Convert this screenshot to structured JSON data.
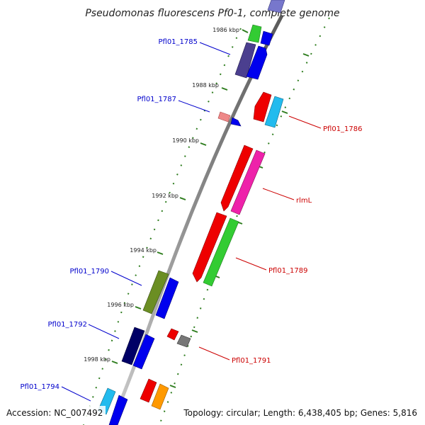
{
  "title": "Pseudomonas fluorescens Pf0-1, complete genome",
  "footer": {
    "accession": "Accession: NC_007492",
    "summary": "Topology: circular; Length: 6,438,405 bp; Genes: 5,816"
  },
  "scale_labels": [
    "1986 kbp",
    "1988 kbp",
    "1990 kbp",
    "1992 kbp",
    "1994 kbp",
    "1996 kbp",
    "1998 kbp"
  ],
  "gene_labels": [
    {
      "text": "Pfl01_1785",
      "color": "#0000cc"
    },
    {
      "text": "Pfl01_1787",
      "color": "#0000cc"
    },
    {
      "text": "Pfl01_1786",
      "color": "#cc0000"
    },
    {
      "text": "rlmL",
      "color": "#cc0000"
    },
    {
      "text": "Pfl01_1789",
      "color": "#cc0000"
    },
    {
      "text": "Pfl01_1790",
      "color": "#0000cc"
    },
    {
      "text": "Pfl01_1792",
      "color": "#0000cc"
    },
    {
      "text": "Pfl01_1791",
      "color": "#cc0000"
    },
    {
      "text": "Pfl01_1794",
      "color": "#0000cc"
    }
  ],
  "colors": {
    "backbone": "#888888",
    "ticks": "#2e7d1e",
    "blue": "#0000ee",
    "red": "#ee0000",
    "green": "#33cc33",
    "cyan": "#22bbee",
    "magenta": "#ee22aa",
    "olive": "#6b8e23",
    "navy": "#000066",
    "purple": "#4b3f8f",
    "orange": "#ff9900",
    "gray": "#777777",
    "pink": "#ee8888"
  }
}
